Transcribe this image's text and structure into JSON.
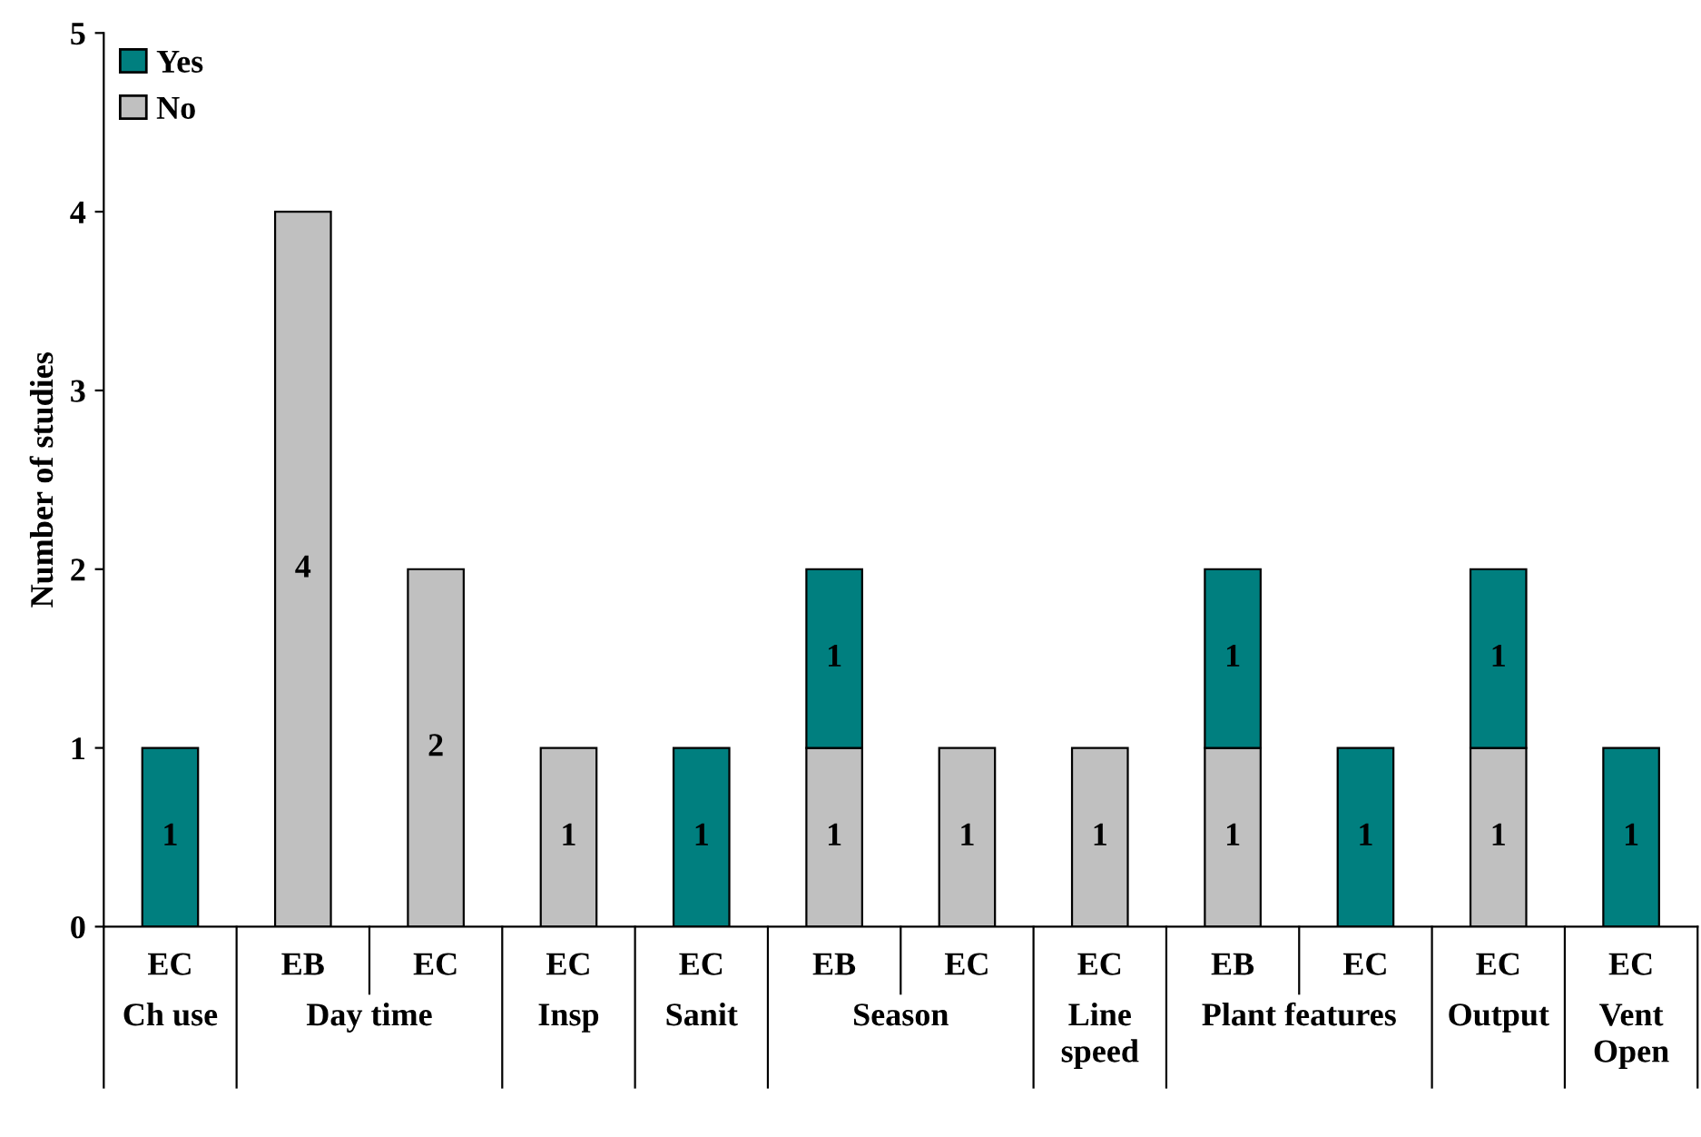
{
  "chart_data": {
    "type": "bar",
    "stacked": true,
    "ylabel": "Number of studies",
    "categories": [
      "EC",
      "EB",
      "EC",
      "EC",
      "EC",
      "EB",
      "EC",
      "EC",
      "EB",
      "EC",
      "EC",
      "EC"
    ],
    "annotations": [
      "Ch use",
      "Day time",
      "Insp",
      "Sanit",
      "Season",
      "Line\nspeed",
      "Plant features",
      "Output",
      "Vent\nOpen"
    ],
    "series": [
      {
        "name": "No",
        "color": "#c0c0c0",
        "values": [
          0,
          4,
          2,
          1,
          0,
          1,
          1,
          1,
          1,
          0,
          1,
          0
        ],
        "value_labels": [
          null,
          "4",
          "2",
          "1",
          null,
          "1",
          "1",
          "1",
          "1",
          null,
          "1",
          null
        ]
      },
      {
        "name": "Yes",
        "color": "#007f7f",
        "values": [
          1,
          0,
          0,
          0,
          1,
          1,
          0,
          0,
          1,
          1,
          1,
          1
        ],
        "value_labels": [
          "1",
          null,
          null,
          null,
          "1",
          "1",
          null,
          null,
          "1",
          "1",
          "1",
          "1"
        ]
      }
    ],
    "ylim": [
      0,
      5
    ],
    "yticks": [
      0,
      1,
      2,
      3,
      4,
      5
    ],
    "grid": false,
    "legend": "top left"
  }
}
